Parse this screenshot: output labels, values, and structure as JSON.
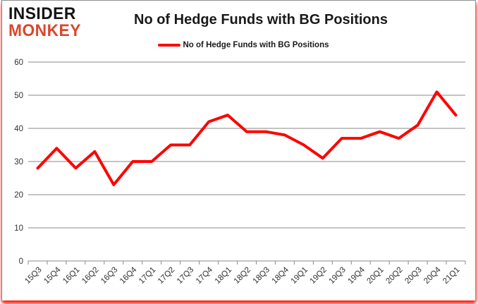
{
  "logo": {
    "line1": "INSIDER",
    "line2": "MONKEY",
    "line1_color": "#141414",
    "line2_color": "#d9472e"
  },
  "header": {
    "title": "No of Hedge Funds with BG Positions"
  },
  "legend": {
    "label": "No of Hedge Funds with BG Positions",
    "swatch_color": "#fe0000"
  },
  "chart_data": {
    "type": "line",
    "title": "No of Hedge Funds with BG Positions",
    "categories": [
      "15Q3",
      "15Q4",
      "16Q1",
      "16Q2",
      "16Q3",
      "16Q4",
      "17Q1",
      "17Q2",
      "17Q3",
      "17Q4",
      "18Q1",
      "18Q2",
      "18Q3",
      "18Q4",
      "19Q1",
      "19Q2",
      "19Q3",
      "19Q4",
      "20Q1",
      "20Q2",
      "20Q3",
      "20Q4",
      "21Q1"
    ],
    "series": [
      {
        "name": "No of Hedge Funds with BG Positions",
        "color": "#fe0000",
        "values": [
          28,
          34,
          28,
          33,
          23,
          30,
          30,
          35,
          35,
          42,
          44,
          39,
          39,
          38,
          35,
          31,
          37,
          37,
          39,
          37,
          41,
          51,
          44
        ]
      }
    ],
    "xlabel": "",
    "ylabel": "",
    "ylim": [
      0,
      60
    ],
    "ytick_interval": 10,
    "grid": true,
    "gridline_color": "#8a8a8a",
    "axis_label_color": "#303030",
    "legend_position": "top"
  }
}
